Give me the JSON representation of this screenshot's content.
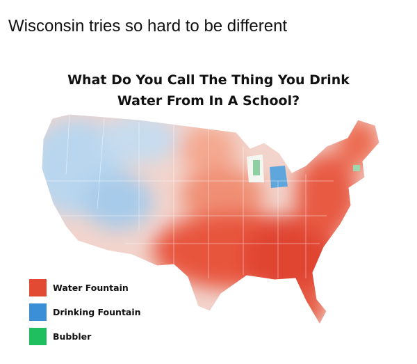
{
  "caption": "Wisconsin tries so hard to be different",
  "map": {
    "title_line1": "What Do You Call The Thing You Drink",
    "title_line2": "Water From In A School?",
    "legend": [
      {
        "label": "Water Fountain",
        "color": "#e34a33"
      },
      {
        "label": "Drinking Fountain",
        "color": "#3b8fd6"
      },
      {
        "label": "Bubbler",
        "color": "#1fbf5f"
      }
    ]
  }
}
